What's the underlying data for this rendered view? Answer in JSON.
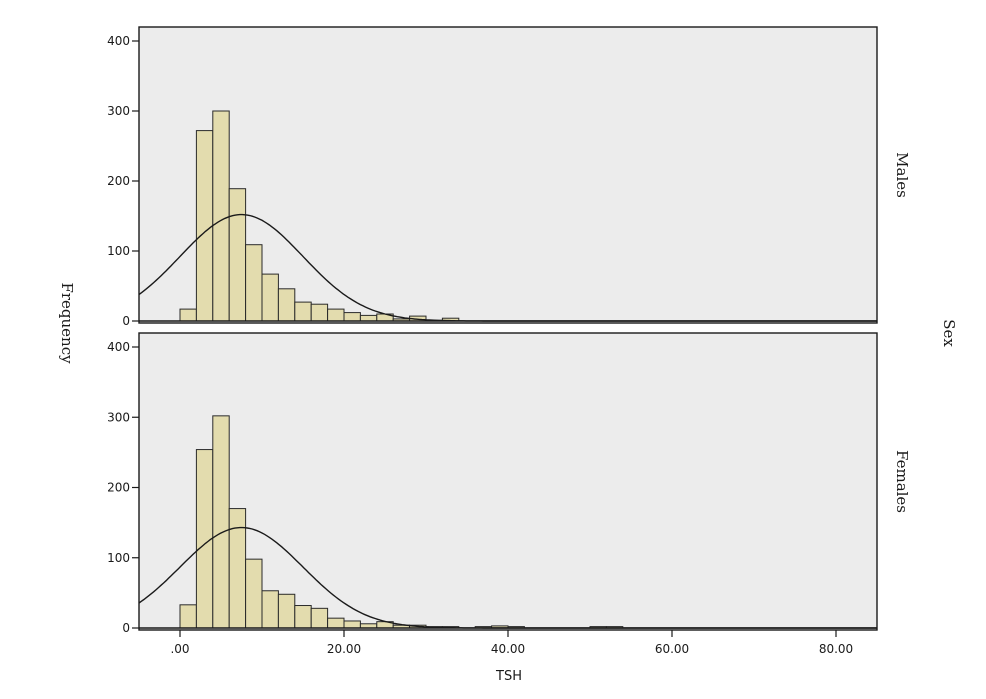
{
  "chart_data": {
    "type": "bar",
    "subtype": "histogram-with-normal-curve",
    "xlabel": "TSH",
    "ylabel": "Frequency",
    "facet_label": "Sex",
    "xlim": [
      -5,
      85
    ],
    "ylim": [
      0,
      400
    ],
    "x_ticks": [
      0,
      20,
      40,
      60,
      80
    ],
    "x_tick_labels": [
      ".00",
      "20.00",
      "40.00",
      "60.00",
      "80.00"
    ],
    "y_ticks": [
      0,
      100,
      200,
      300,
      400
    ],
    "y_tick_labels": [
      "0",
      "100",
      "200",
      "300",
      "400"
    ],
    "bin_width": 2,
    "colors": {
      "bar_fill": "#e3dcae",
      "panel_bg": "#ececec",
      "curve": "#1a1a1a"
    },
    "panels": [
      {
        "name": "Males",
        "bins": [
          {
            "x0": 0,
            "count": 17
          },
          {
            "x0": 2,
            "count": 272
          },
          {
            "x0": 4,
            "count": 300
          },
          {
            "x0": 6,
            "count": 189
          },
          {
            "x0": 8,
            "count": 109
          },
          {
            "x0": 10,
            "count": 67
          },
          {
            "x0": 12,
            "count": 46
          },
          {
            "x0": 14,
            "count": 27
          },
          {
            "x0": 16,
            "count": 24
          },
          {
            "x0": 18,
            "count": 17
          },
          {
            "x0": 20,
            "count": 12
          },
          {
            "x0": 22,
            "count": 8
          },
          {
            "x0": 24,
            "count": 10
          },
          {
            "x0": 26,
            "count": 3
          },
          {
            "x0": 28,
            "count": 7
          },
          {
            "x0": 30,
            "count": 1
          },
          {
            "x0": 32,
            "count": 4
          }
        ],
        "normal_curve": {
          "mean": 7.5,
          "sd": 7.5,
          "peak": 152
        }
      },
      {
        "name": "Females",
        "bins": [
          {
            "x0": 0,
            "count": 33
          },
          {
            "x0": 2,
            "count": 254
          },
          {
            "x0": 4,
            "count": 302
          },
          {
            "x0": 6,
            "count": 170
          },
          {
            "x0": 8,
            "count": 98
          },
          {
            "x0": 10,
            "count": 53
          },
          {
            "x0": 12,
            "count": 48
          },
          {
            "x0": 14,
            "count": 32
          },
          {
            "x0": 16,
            "count": 28
          },
          {
            "x0": 18,
            "count": 14
          },
          {
            "x0": 20,
            "count": 10
          },
          {
            "x0": 22,
            "count": 6
          },
          {
            "x0": 24,
            "count": 9
          },
          {
            "x0": 26,
            "count": 4
          },
          {
            "x0": 28,
            "count": 4
          },
          {
            "x0": 30,
            "count": 2
          },
          {
            "x0": 32,
            "count": 2
          },
          {
            "x0": 36,
            "count": 2
          },
          {
            "x0": 38,
            "count": 3
          },
          {
            "x0": 40,
            "count": 2
          },
          {
            "x0": 50,
            "count": 2
          },
          {
            "x0": 52,
            "count": 2
          }
        ],
        "normal_curve": {
          "mean": 7.5,
          "sd": 7.5,
          "peak": 143
        }
      }
    ]
  }
}
